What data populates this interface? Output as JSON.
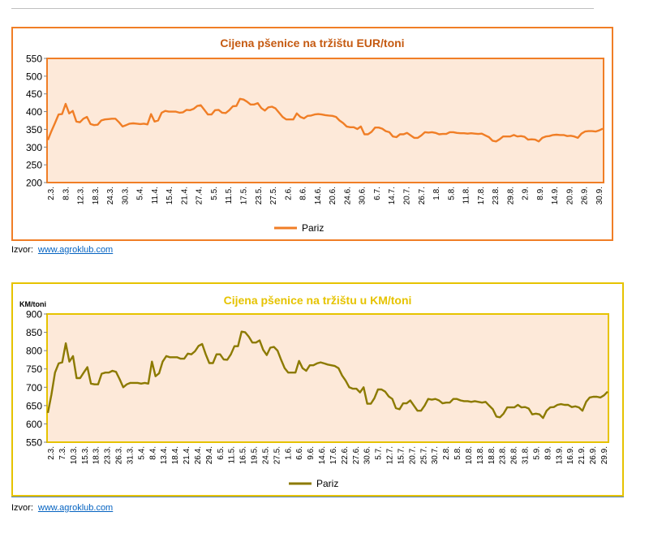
{
  "source": {
    "label": "Izvor:",
    "link": "www.agroklub.com"
  },
  "chart_data": [
    {
      "type": "line",
      "title": "Cijena pšenice na tržištu EUR/toni",
      "ylabel": "",
      "ylim": [
        200,
        550
      ],
      "yticks": [
        200,
        250,
        300,
        350,
        400,
        450,
        500,
        550
      ],
      "grid": false,
      "legend": "bottom",
      "colors": {
        "line": "#f07e26",
        "plot_bg": "#fde9d9",
        "frame": "#f07e26",
        "title": "#c55a11"
      },
      "x_ticks": [
        "2.3.",
        "8.3.",
        "12.3.",
        "18.3.",
        "24.3.",
        "30.3.",
        "5.4.",
        "11.4.",
        "15.4.",
        "21.4.",
        "27.4.",
        "5.5.",
        "11.5.",
        "17.5.",
        "23.5.",
        "27.5.",
        "2.6.",
        "8.6.",
        "14.6.",
        "20.6.",
        "24.6.",
        "30.6.",
        "6.7.",
        "14.7.",
        "20.7.",
        "26.7.",
        "1.8.",
        "5.8.",
        "11.8.",
        "17.8.",
        "23.8.",
        "29.8.",
        "2.9.",
        "8.9.",
        "14.9.",
        "20.9.",
        "26.9.",
        "30.9."
      ],
      "series": [
        {
          "name": "Pariz",
          "values": [
            320,
            345,
            368,
            392,
            393,
            422,
            395,
            402,
            372,
            370,
            380,
            385,
            365,
            362,
            363,
            375,
            378,
            379,
            380,
            380,
            370,
            358,
            362,
            366,
            367,
            366,
            365,
            366,
            364,
            393,
            372,
            375,
            397,
            402,
            400,
            400,
            400,
            397,
            398,
            405,
            404,
            408,
            416,
            418,
            405,
            392,
            392,
            404,
            405,
            397,
            396,
            404,
            415,
            416,
            436,
            434,
            428,
            420,
            420,
            424,
            410,
            403,
            412,
            414,
            409,
            397,
            385,
            378,
            378,
            378,
            395,
            385,
            381,
            388,
            389,
            392,
            393,
            392,
            390,
            389,
            388,
            385,
            375,
            368,
            358,
            356,
            356,
            351,
            358,
            336,
            336,
            343,
            355,
            355,
            352,
            345,
            342,
            330,
            328,
            336,
            336,
            340,
            333,
            326,
            326,
            333,
            342,
            341,
            342,
            340,
            336,
            337,
            337,
            342,
            342,
            340,
            339,
            339,
            338,
            339,
            338,
            337,
            338,
            333,
            328,
            318,
            316,
            322,
            330,
            330,
            330,
            334,
            330,
            331,
            329,
            321,
            322,
            321,
            316,
            326,
            330,
            331,
            334,
            335,
            334,
            334,
            331,
            332,
            330,
            326,
            338,
            344,
            345,
            345,
            344,
            347,
            352
          ]
        }
      ]
    },
    {
      "type": "line",
      "title": "Cijena pšenice na tržištu u KM/toni",
      "ylabel": "KM/toni",
      "ylim": [
        550,
        900
      ],
      "yticks": [
        550,
        600,
        650,
        700,
        750,
        800,
        850,
        900
      ],
      "grid": false,
      "legend": "bottom",
      "colors": {
        "line": "#8c7a00",
        "plot_bg": "#fde9d9",
        "frame": "#e6c300",
        "title": "#e6c300"
      },
      "x_ticks": [
        "2.3.",
        "7.3.",
        "10.3.",
        "15.3.",
        "18.3.",
        "23.3.",
        "26.3.",
        "31.3.",
        "5.4.",
        "8.4.",
        "13.4.",
        "18.4.",
        "21.4.",
        "26.4.",
        "29.4.",
        "6.5.",
        "11.5.",
        "16.5.",
        "19.5.",
        "24.5.",
        "27.5.",
        "1.6.",
        "6.6.",
        "9.6.",
        "14.6.",
        "17.6.",
        "22.6.",
        "27.6.",
        "30.6.",
        "5.7.",
        "12.7.",
        "15.7.",
        "20.7.",
        "25.7.",
        "30.7.",
        "2.8.",
        "5.8.",
        "10.8.",
        "13.8.",
        "18.8.",
        "23.8.",
        "26.8.",
        "31.8.",
        "5.9.",
        "8.9.",
        "13.9.",
        "16.9.",
        "21.9.",
        "26.9.",
        "29.9."
      ],
      "series": [
        {
          "name": "Pariz",
          "values": [
            630,
            680,
            740,
            765,
            768,
            820,
            770,
            785,
            725,
            725,
            740,
            755,
            710,
            708,
            708,
            737,
            740,
            740,
            745,
            742,
            722,
            700,
            708,
            712,
            712,
            712,
            710,
            712,
            710,
            770,
            730,
            738,
            770,
            785,
            782,
            782,
            782,
            778,
            778,
            792,
            790,
            798,
            813,
            818,
            790,
            766,
            766,
            790,
            790,
            776,
            775,
            790,
            812,
            812,
            852,
            850,
            838,
            822,
            822,
            828,
            802,
            788,
            808,
            810,
            800,
            775,
            752,
            740,
            740,
            740,
            772,
            752,
            745,
            760,
            760,
            765,
            768,
            765,
            762,
            760,
            758,
            752,
            732,
            718,
            700,
            696,
            696,
            686,
            700,
            655,
            655,
            670,
            694,
            694,
            688,
            675,
            668,
            643,
            640,
            656,
            656,
            664,
            650,
            636,
            636,
            650,
            668,
            666,
            668,
            664,
            656,
            658,
            658,
            668,
            668,
            664,
            662,
            662,
            660,
            662,
            660,
            658,
            660,
            650,
            640,
            620,
            618,
            628,
            645,
            645,
            645,
            652,
            645,
            646,
            642,
            626,
            628,
            626,
            616,
            636,
            645,
            646,
            652,
            654,
            652,
            652,
            646,
            648,
            645,
            636,
            660,
            672,
            674,
            674,
            672,
            678,
            688
          ]
        }
      ]
    }
  ]
}
